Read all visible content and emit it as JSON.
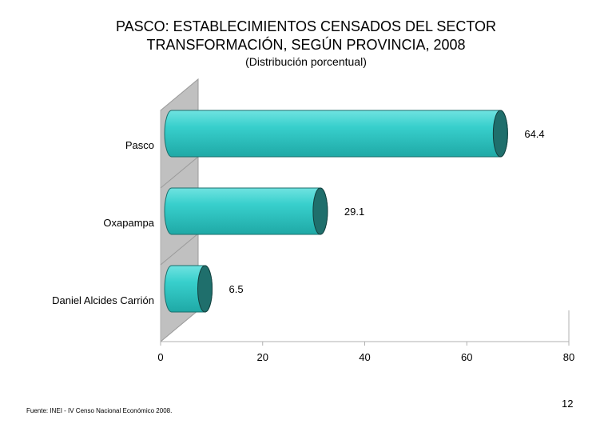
{
  "slide": {
    "title_line1": "PASCO: ESTABLECIMIENTOS CENSADOS DEL SECTOR",
    "title_line2": "TRANSFORMACIÓN, SEGÚN PROVINCIA, 2008",
    "subtitle": "(Distribución porcentual)",
    "source": "Fuente: INEI - IV Censo Nacional Económico 2008.",
    "page_number": "12"
  },
  "chart_data": {
    "type": "bar",
    "orientation": "horizontal",
    "title": "PASCO: ESTABLECIMIENTOS CENSADOS DEL SECTOR TRANSFORMACIÓN, SEGÚN PROVINCIA, 2008",
    "subtitle": "(Distribución porcentual)",
    "categories": [
      "Pasco",
      "Oxapampa",
      "Daniel Alcides Carrión"
    ],
    "values": [
      64.4,
      29.1,
      6.5
    ],
    "value_labels": [
      "64.4",
      "29.1",
      "6.5"
    ],
    "xlim": [
      0,
      80
    ],
    "xticks": [
      "0",
      "20",
      "40",
      "60",
      "80"
    ],
    "xlabel": "",
    "ylabel": "",
    "bar_color": "#2EC4C4",
    "bar_end_color": "#1F6F6C",
    "wall_color": "#C0C0C0",
    "legend": false,
    "grid": false
  }
}
